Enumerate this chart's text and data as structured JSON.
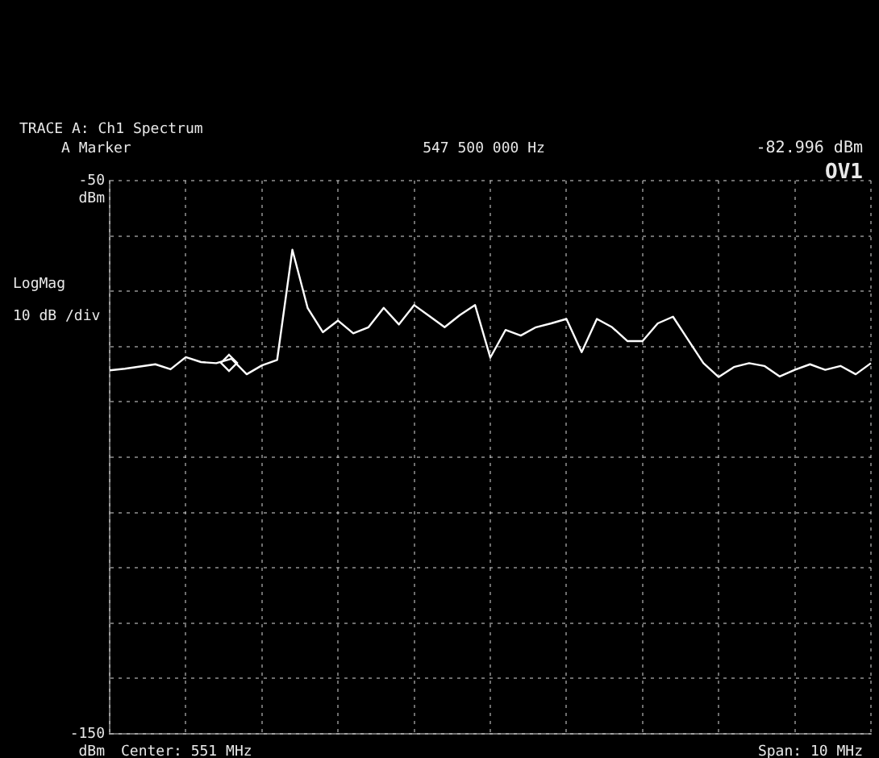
{
  "chart_data": {
    "type": "line",
    "title": "TRACE A: Ch1 Spectrum",
    "annotations": [
      "A Marker",
      "547 500 000 Hz",
      "-82.996 dBm",
      "OV1",
      "LogMag",
      "10 dB /div",
      "Center: 551 MHz",
      "Span: 10 MHz",
      "dBm",
      "dBm"
    ],
    "categories": [
      null,
      null,
      null,
      null,
      null,
      null,
      null,
      null,
      null,
      null,
      null,
      null,
      null,
      null,
      null,
      null,
      null,
      null,
      null,
      null,
      null,
      null,
      null,
      null,
      null,
      null,
      null,
      null,
      null,
      null,
      null,
      null,
      null,
      null,
      null,
      null,
      null,
      null,
      null,
      null,
      null,
      null,
      null,
      null,
      null,
      null,
      null,
      null,
      null,
      null,
      null
    ],
    "ylim": [
      -150,
      -50
    ],
    "yticks": [
      -150,
      {
        "value": -140,
        "label": null
      },
      {
        "value": -130,
        "label": null
      },
      {
        "value": -120,
        "label": null
      },
      {
        "value": -110,
        "label": null
      },
      {
        "value": -100,
        "label": null
      },
      {
        "value": -90,
        "label": null
      },
      {
        "value": -80,
        "label": null
      },
      {
        "value": -70,
        "label": null
      },
      {
        "value": -60,
        "label": null
      },
      -50
    ],
    "tick_labels": "y",
    "grid": true,
    "legend": false,
    "marker": "none",
    "line_style": "solid",
    "series": [
      {
        "color": "#ffffff",
        "values": [
          -84.3,
          -84.0,
          -83.6,
          -83.2,
          -84.1,
          -81.9,
          -82.8,
          -83.0,
          -82.2,
          -85.0,
          -83.4,
          -82.4,
          -62.5,
          -73.0,
          -77.4,
          -75.3,
          -77.6,
          -76.5,
          -73.0,
          -76.0,
          -72.5,
          -74.5,
          -76.5,
          -74.3,
          -72.5,
          -82.0,
          -77.0,
          -78.0,
          -76.5,
          -75.8,
          -75.0,
          -81.0,
          -75.0,
          -76.5,
          -79.0,
          -79.0,
          -75.8,
          -74.6,
          -78.8,
          -83.0,
          -85.5,
          -83.7,
          -83.0,
          -83.5,
          -85.4,
          -84.2,
          -83.2,
          -84.2,
          -83.5,
          -85.0,
          -83.0
        ]
      }
    ]
  }
}
